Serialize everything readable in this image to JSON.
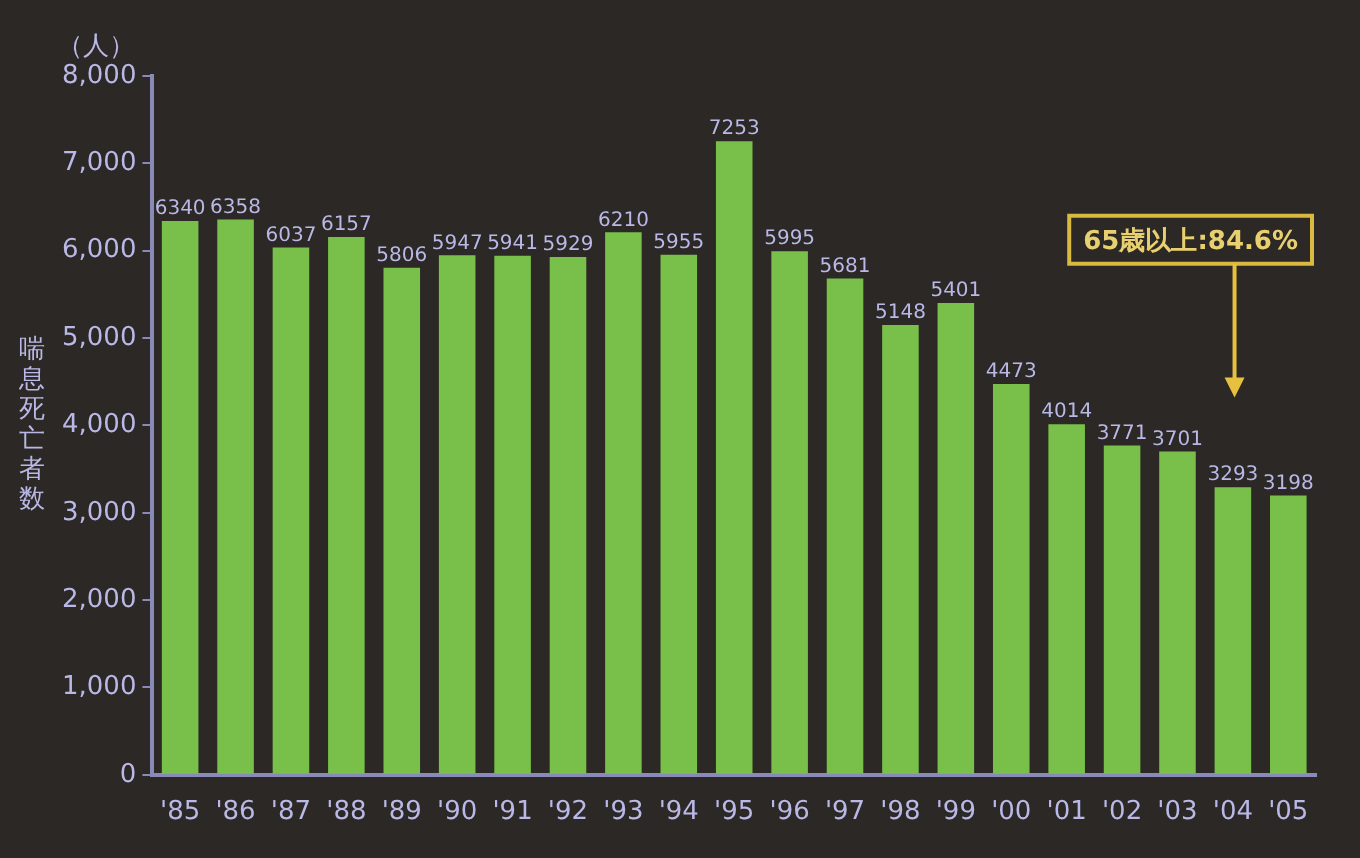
{
  "chart_data": {
    "type": "bar",
    "ylabel": "喘息死亡者数",
    "categories": [
      "'85",
      "'86",
      "'87",
      "'88",
      "'89",
      "'90",
      "'91",
      "'92",
      "'93",
      "'94",
      "'95",
      "'96",
      "'97",
      "'98",
      "'99",
      "'00",
      "'01",
      "'02",
      "'03",
      "'04",
      "'05"
    ],
    "values": [
      6340,
      6358,
      6037,
      6157,
      5806,
      5947,
      5941,
      5929,
      6210,
      5955,
      7253,
      5995,
      5681,
      5148,
      5401,
      4473,
      4014,
      3771,
      3701,
      3293,
      3198
    ],
    "color": "#78c04a",
    "ylim": [
      0,
      8000
    ],
    "yticks": [
      {
        "value": 0,
        "label": "0"
      },
      {
        "value": 1000,
        "label": "1,000"
      },
      {
        "value": 2000,
        "label": "2,000"
      },
      {
        "value": 3000,
        "label": "3,000"
      },
      {
        "value": 4000,
        "label": "4,000"
      },
      {
        "value": 5000,
        "label": "5,000"
      },
      {
        "value": 6000,
        "label": "6,000"
      },
      {
        "value": 7000,
        "label": "7,000"
      },
      {
        "value": 8000,
        "label": "8,000"
      }
    ],
    "data_labels": true,
    "legend": false,
    "annotations": [
      "（人）",
      "65歳以上:84.6%"
    ]
  }
}
